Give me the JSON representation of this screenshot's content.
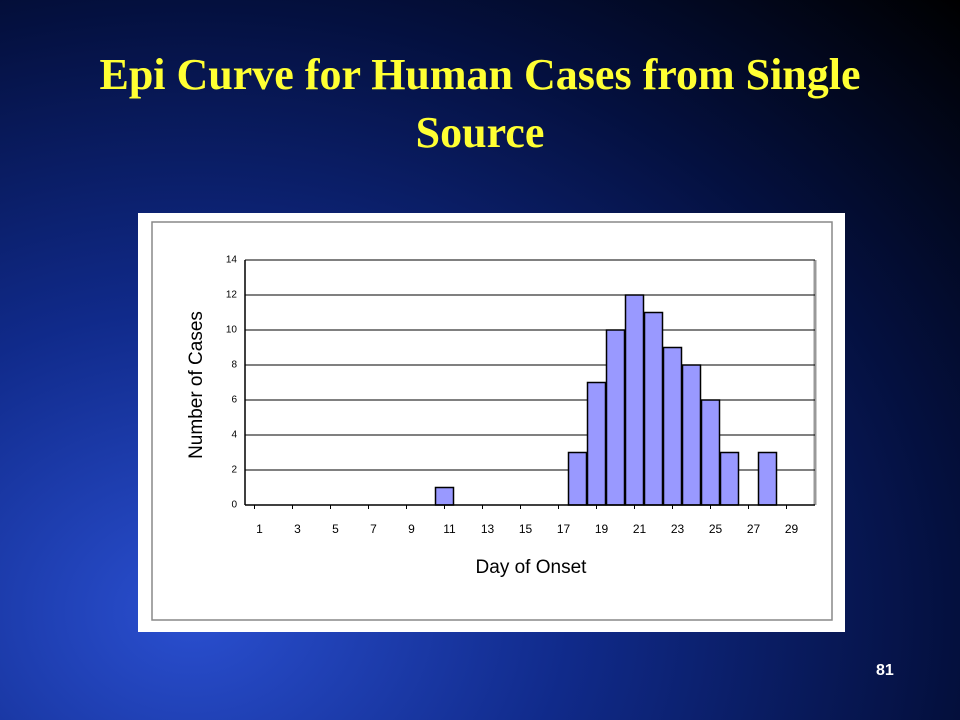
{
  "chart_data": {
    "type": "bar",
    "title": "Epi Curve for Human Cases from Single Source",
    "x_label": "Day of Onset",
    "y_label": "Number of Cases",
    "x": [
      1,
      2,
      3,
      4,
      5,
      6,
      7,
      8,
      9,
      10,
      11,
      12,
      13,
      14,
      15,
      16,
      17,
      18,
      19,
      20,
      21,
      22,
      23,
      24,
      25,
      26,
      27,
      28,
      29
    ],
    "values": [
      0,
      0,
      0,
      0,
      0,
      0,
      0,
      0,
      0,
      0,
      1,
      0,
      0,
      0,
      0,
      0,
      0,
      3,
      7,
      10,
      12,
      11,
      9,
      8,
      6,
      3,
      0,
      3,
      0
    ],
    "color": "#9999ff",
    "xlim": [
      0.5,
      30.5
    ],
    "xticks": [
      1,
      3,
      5,
      7,
      9,
      11,
      13,
      15,
      17,
      19,
      21,
      23,
      25,
      27,
      29
    ],
    "ylim": [
      0,
      14
    ],
    "yticks": [
      0,
      2,
      4,
      6,
      8,
      10,
      12,
      14
    ],
    "grid": true
  },
  "slide_number": "81"
}
